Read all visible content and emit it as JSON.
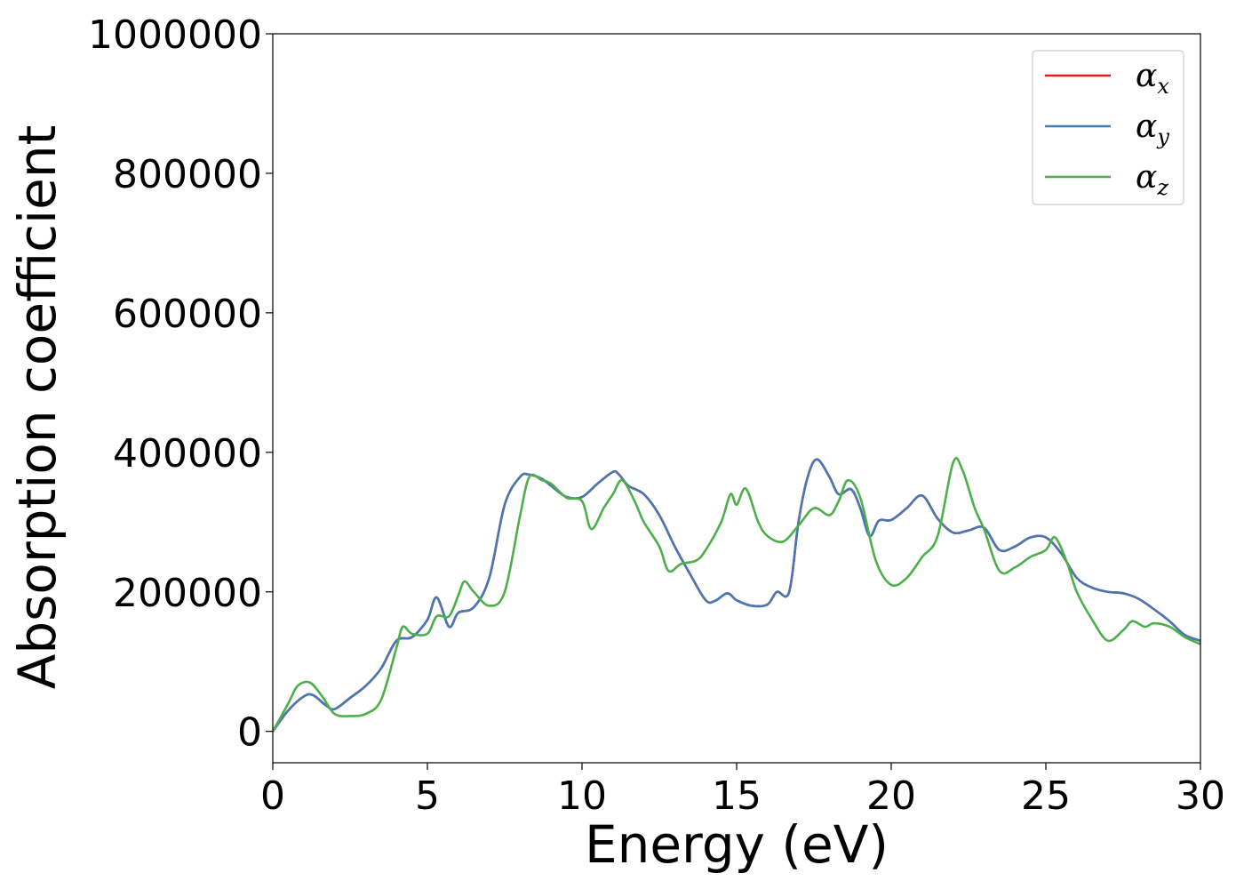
{
  "chart_data": {
    "type": "line",
    "xlabel": "Energy (eV)",
    "ylabel": "Absorption coefficient",
    "xlim": [
      0,
      30
    ],
    "ylim": [
      -45000,
      1000000
    ],
    "xticks": [
      0,
      5,
      10,
      15,
      20,
      25,
      30
    ],
    "xtick_labels": [
      "0",
      "5",
      "10",
      "15",
      "20",
      "25",
      "30"
    ],
    "yticks": [
      0,
      200000,
      400000,
      600000,
      800000,
      1000000
    ],
    "ytick_labels": [
      "0",
      "200000",
      "400000",
      "600000",
      "800000",
      "1000000"
    ],
    "grid": false,
    "legend_position": "top-right",
    "series": [
      {
        "name": "α_x",
        "legend_base": "α",
        "legend_sub": "x",
        "color": "#e41a1c",
        "x": [
          0,
          0.5,
          1.0,
          1.3,
          1.7,
          2.0,
          2.5,
          3.0,
          3.5,
          4.0,
          4.5,
          5.0,
          5.3,
          5.7,
          6.0,
          6.5,
          7.0,
          7.5,
          8.0,
          8.3,
          8.7,
          9.0,
          9.5,
          10.0,
          10.5,
          11.0,
          11.2,
          11.5,
          12.0,
          12.5,
          13.0,
          13.5,
          14.0,
          14.3,
          14.7,
          15.0,
          15.5,
          16.0,
          16.3,
          16.7,
          17.0,
          17.3,
          17.6,
          18.0,
          18.3,
          18.7,
          19.0,
          19.3,
          19.6,
          20.0,
          20.5,
          21.0,
          21.5,
          22.0,
          22.5,
          23.0,
          23.5,
          24.0,
          24.5,
          25.0,
          25.5,
          26.0,
          26.5,
          27.0,
          27.5,
          28.0,
          28.5,
          29.0,
          29.5,
          30.0
        ],
        "values": [
          0,
          30000,
          50000,
          52000,
          38000,
          32000,
          48000,
          65000,
          90000,
          130000,
          135000,
          160000,
          192000,
          150000,
          170000,
          178000,
          220000,
          325000,
          365000,
          368000,
          362000,
          352000,
          336000,
          336000,
          355000,
          372000,
          368000,
          352000,
          340000,
          310000,
          265000,
          225000,
          188000,
          187000,
          198000,
          188000,
          180000,
          182000,
          200000,
          200000,
          300000,
          365000,
          390000,
          365000,
          340000,
          347000,
          320000,
          280000,
          302000,
          303000,
          320000,
          338000,
          305000,
          285000,
          288000,
          292000,
          260000,
          265000,
          278000,
          278000,
          255000,
          220000,
          206000,
          200000,
          198000,
          190000,
          175000,
          158000,
          138000,
          130000
        ]
      },
      {
        "name": "α_y",
        "legend_base": "α",
        "legend_sub": "y",
        "color": "#4878b4",
        "x": [
          0,
          0.5,
          1.0,
          1.3,
          1.7,
          2.0,
          2.5,
          3.0,
          3.5,
          4.0,
          4.5,
          5.0,
          5.3,
          5.7,
          6.0,
          6.5,
          7.0,
          7.5,
          8.0,
          8.3,
          8.7,
          9.0,
          9.5,
          10.0,
          10.5,
          11.0,
          11.2,
          11.5,
          12.0,
          12.5,
          13.0,
          13.5,
          14.0,
          14.3,
          14.7,
          15.0,
          15.5,
          16.0,
          16.3,
          16.7,
          17.0,
          17.3,
          17.6,
          18.0,
          18.3,
          18.7,
          19.0,
          19.3,
          19.6,
          20.0,
          20.5,
          21.0,
          21.5,
          22.0,
          22.5,
          23.0,
          23.5,
          24.0,
          24.5,
          25.0,
          25.5,
          26.0,
          26.5,
          27.0,
          27.5,
          28.0,
          28.5,
          29.0,
          29.5,
          30.0
        ],
        "values": [
          0,
          30000,
          50000,
          52000,
          38000,
          32000,
          48000,
          65000,
          90000,
          130000,
          135000,
          160000,
          192000,
          150000,
          170000,
          178000,
          220000,
          325000,
          365000,
          368000,
          362000,
          352000,
          336000,
          336000,
          355000,
          372000,
          368000,
          352000,
          340000,
          310000,
          265000,
          225000,
          188000,
          187000,
          198000,
          188000,
          180000,
          182000,
          200000,
          200000,
          300000,
          365000,
          390000,
          365000,
          340000,
          347000,
          320000,
          280000,
          302000,
          303000,
          320000,
          338000,
          305000,
          285000,
          288000,
          292000,
          260000,
          265000,
          278000,
          278000,
          255000,
          220000,
          206000,
          200000,
          198000,
          190000,
          175000,
          158000,
          138000,
          130000
        ]
      },
      {
        "name": "α_z",
        "legend_base": "α",
        "legend_sub": "z",
        "color": "#4daf4a",
        "x": [
          0,
          0.5,
          0.8,
          1.2,
          1.6,
          2.0,
          2.5,
          3.0,
          3.5,
          4.0,
          4.2,
          4.5,
          5.0,
          5.3,
          5.7,
          6.0,
          6.2,
          6.5,
          7.0,
          7.5,
          8.0,
          8.3,
          8.7,
          9.0,
          9.5,
          10.0,
          10.3,
          10.7,
          11.0,
          11.3,
          11.7,
          12.0,
          12.5,
          12.8,
          13.2,
          13.7,
          14.0,
          14.5,
          14.8,
          15.0,
          15.3,
          15.7,
          16.0,
          16.5,
          17.0,
          17.5,
          18.0,
          18.3,
          18.6,
          19.0,
          19.5,
          20.0,
          20.5,
          21.0,
          21.5,
          22.0,
          22.3,
          22.7,
          23.0,
          23.5,
          24.0,
          24.5,
          25.0,
          25.3,
          25.7,
          26.0,
          26.5,
          27.0,
          27.5,
          27.8,
          28.2,
          28.5,
          29.0,
          29.5,
          30.0
        ],
        "values": [
          0,
          40000,
          65000,
          70000,
          50000,
          25000,
          22000,
          25000,
          45000,
          120000,
          150000,
          140000,
          140000,
          165000,
          165000,
          195000,
          215000,
          200000,
          180000,
          200000,
          310000,
          365000,
          360000,
          355000,
          335000,
          330000,
          290000,
          320000,
          340000,
          360000,
          330000,
          300000,
          265000,
          230000,
          240000,
          245000,
          260000,
          300000,
          340000,
          325000,
          348000,
          300000,
          280000,
          272000,
          295000,
          320000,
          310000,
          330000,
          360000,
          335000,
          245000,
          210000,
          220000,
          250000,
          280000,
          385000,
          375000,
          320000,
          290000,
          230000,
          235000,
          250000,
          260000,
          278000,
          240000,
          200000,
          160000,
          130000,
          145000,
          158000,
          150000,
          155000,
          150000,
          135000,
          125000
        ]
      }
    ]
  }
}
